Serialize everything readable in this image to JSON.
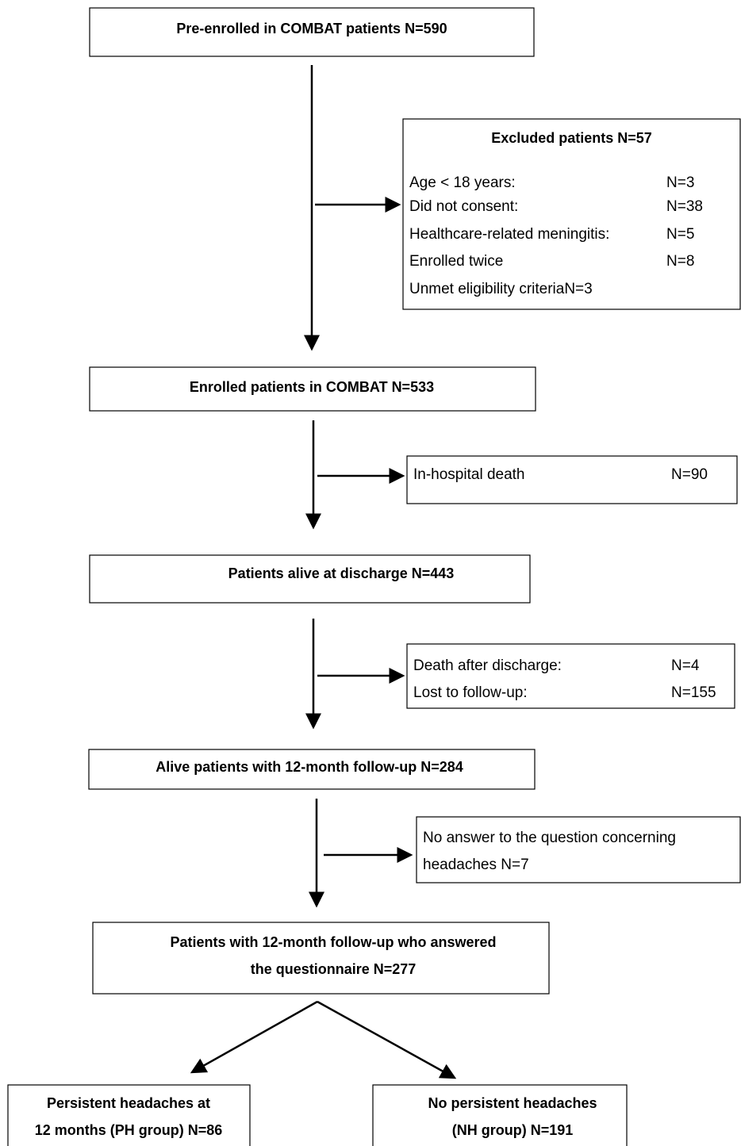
{
  "main_boxes": [
    {
      "lines": [
        "Pre-enrolled in COMBAT patients N=590"
      ]
    },
    {
      "lines": [
        "Enrolled patients in COMBAT N=533"
      ]
    },
    {
      "lines": [
        "Patients alive at discharge N=443"
      ]
    },
    {
      "lines": [
        "Alive patients with 12-month follow-up N=284"
      ]
    },
    {
      "lines": [
        "Patients with 12-month follow-up who answered",
        "the questionnaire N=277"
      ]
    }
  ],
  "exclusions": [
    {
      "title": "Excluded patients N=57",
      "rows": [
        [
          "Age < 18 years:",
          "N=3"
        ],
        [
          "Did not consent:",
          "N=38"
        ],
        [
          "Healthcare-related meningitis:",
          "N=5"
        ],
        [
          "Enrolled twice",
          "N=8"
        ],
        [
          "Unmet eligibility criteriaN=3"
        ]
      ]
    },
    {
      "rows": [
        [
          "In-hospital death",
          "N=90"
        ]
      ]
    },
    {
      "rows": [
        [
          "Death after discharge:",
          "N=4"
        ],
        [
          "Lost to follow-up:",
          "N=155"
        ]
      ]
    },
    {
      "rows": [
        [
          "No answer to the question concerning"
        ],
        [
          "headaches N=7"
        ]
      ]
    }
  ],
  "groups": [
    {
      "lines": [
        "Persistent headaches at",
        "12 months (PH group) N=86"
      ]
    },
    {
      "lines": [
        "No persistent headaches",
        "(NH group)  N=191"
      ]
    }
  ]
}
